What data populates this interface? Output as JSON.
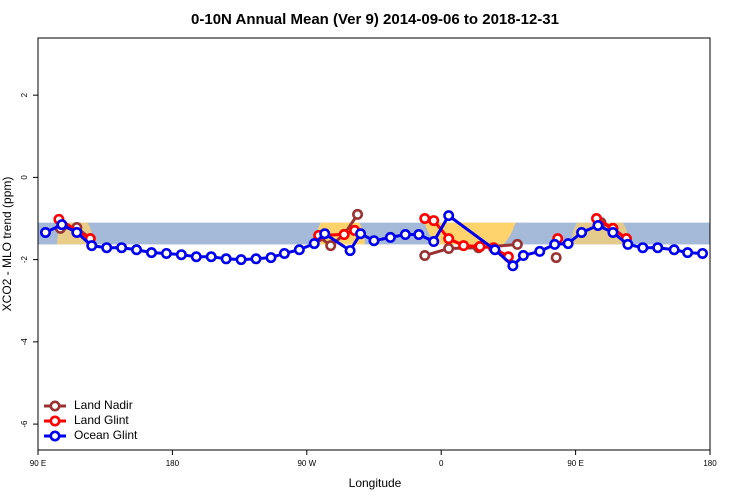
{
  "chart_data": {
    "type": "line",
    "title": "0-10N Annual Mean (Ver 9)   2014-09-06 to 2018-12-31",
    "xlabel": "Longitude",
    "ylabel": "XCO2 - MLO trend (ppm)",
    "xlim": [
      90,
      540
    ],
    "xticks": [
      {
        "value": 90,
        "label": "90 E"
      },
      {
        "value": 180,
        "label": "180"
      },
      {
        "value": 270,
        "label": "90 W"
      },
      {
        "value": 360,
        "label": "0"
      },
      {
        "value": 450,
        "label": "90 E"
      },
      {
        "value": 540,
        "label": "180"
      }
    ],
    "ylim": [
      -6.63,
      3.39
    ],
    "yticks": [
      -6,
      -4,
      -2,
      0,
      2
    ],
    "band": {
      "ymin": -1.63,
      "ymax": -1.1,
      "color": "#a5b9d9"
    },
    "legend": "bottomleft",
    "series": [
      {
        "name": "Land Nadir",
        "color": "#993333",
        "x": [
          105,
          116,
          125,
          null,
          278,
          286,
          295,
          304,
          null,
          349,
          365,
          385,
          411,
          null,
          437,
          null,
          467,
          475,
          484
        ],
        "values": [
          -1.24,
          -1.22,
          -1.49,
          null,
          -1.44,
          -1.66,
          -1.39,
          -0.9,
          null,
          -1.9,
          -1.73,
          -1.71,
          -1.63,
          null,
          -1.95,
          null,
          -1.1,
          -1.24,
          -1.49
        ]
      },
      {
        "name": "Land Glint",
        "color": "#ff0000",
        "x": [
          104,
          125,
          null,
          278,
          295,
          302,
          null,
          349,
          355,
          365,
          375,
          386,
          395,
          405,
          null,
          438,
          null,
          464,
          475,
          484
        ],
        "values": [
          -1.02,
          -1.49,
          null,
          -1.41,
          -1.39,
          -1.29,
          null,
          -1.0,
          -1.05,
          -1.49,
          -1.66,
          -1.68,
          -1.71,
          -1.93,
          null,
          -1.49,
          null,
          -1.0,
          -1.24,
          -1.49
        ]
      },
      {
        "name": "Ocean Glint",
        "color": "#0000ee",
        "x": [
          95,
          106,
          116,
          126,
          136,
          146,
          156,
          166,
          176,
          186,
          196,
          206,
          216,
          226,
          236,
          246,
          255,
          265,
          275,
          282,
          299,
          306,
          315,
          326,
          336,
          345,
          355,
          365,
          396,
          408,
          415,
          426,
          436,
          445,
          454,
          465,
          475,
          485,
          495,
          505,
          516,
          525,
          535
        ],
        "values": [
          -1.34,
          -1.15,
          -1.34,
          -1.66,
          -1.71,
          -1.71,
          -1.76,
          -1.83,
          -1.85,
          -1.88,
          -1.93,
          -1.93,
          -1.98,
          -2.0,
          -1.98,
          -1.95,
          -1.85,
          -1.76,
          -1.61,
          -1.37,
          -1.78,
          -1.37,
          -1.54,
          -1.46,
          -1.39,
          -1.39,
          -1.56,
          -0.93,
          -1.76,
          -2.15,
          -1.9,
          -1.8,
          -1.63,
          -1.61,
          -1.34,
          -1.17,
          -1.34,
          -1.63,
          -1.71,
          -1.71,
          -1.76,
          -1.83,
          -1.85
        ]
      }
    ]
  }
}
